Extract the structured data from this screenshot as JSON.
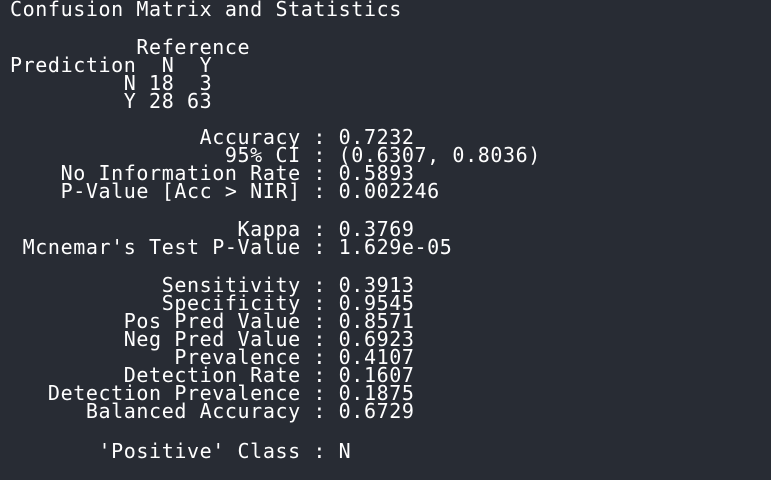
{
  "console": {
    "lines": [
      "Confusion Matrix and Statistics",
      "",
      "          Reference",
      "Prediction  N  Y",
      "         N 18  3",
      "         Y 28 63",
      "",
      "               Accuracy : 0.7232",
      "                 95% CI : (0.6307, 0.8036)",
      "    No Information Rate : 0.5893",
      "    P-Value [Acc > NIR] : 0.002246",
      "",
      "                  Kappa : 0.3769",
      " Mcnemar's Test P-Value : 1.629e-05",
      "",
      "            Sensitivity : 0.3913",
      "            Specificity : 0.9545",
      "         Pos Pred Value : 0.8571",
      "         Neg Pred Value : 0.6923",
      "             Prevalence : 0.4107",
      "         Detection Rate : 0.1607",
      "   Detection Prevalence : 0.1875",
      "      Balanced Accuracy : 0.6729",
      "",
      "       'Positive' Class : N"
    ]
  }
}
